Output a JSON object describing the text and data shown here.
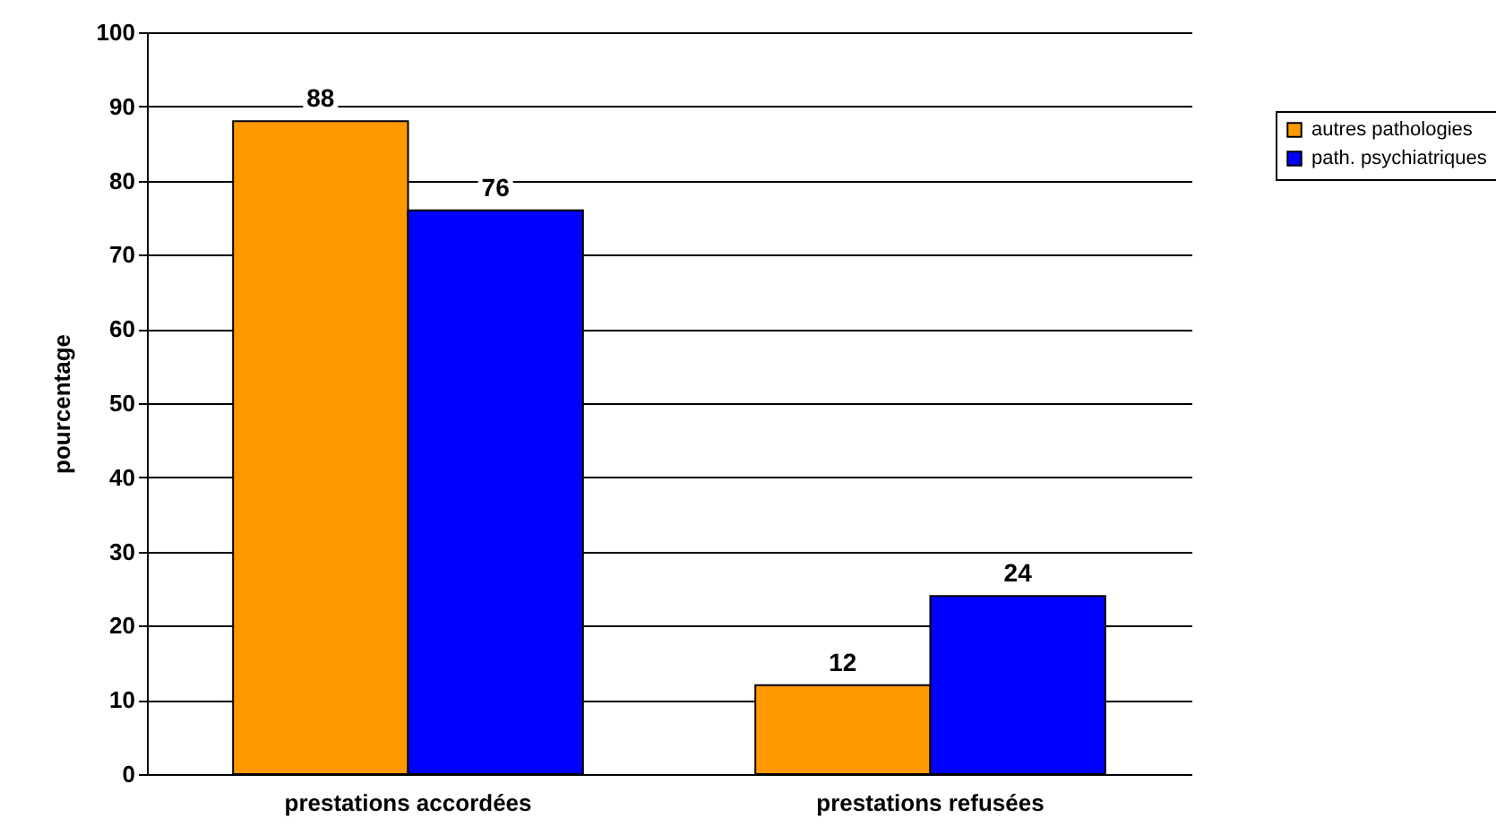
{
  "chart_data": {
    "type": "bar",
    "ylabel": "pourcentage",
    "categories": [
      "prestations accordées",
      "prestations refusées"
    ],
    "series": [
      {
        "name": "autres pathologies",
        "color": "#ff9900",
        "values": [
          88,
          12
        ]
      },
      {
        "name": "path. psychiatriques",
        "color": "#0000ff",
        "values": [
          76,
          24
        ]
      }
    ],
    "ylim": [
      0,
      100
    ],
    "yticks": [
      0,
      10,
      20,
      30,
      40,
      50,
      60,
      70,
      80,
      90,
      100
    ],
    "grid": "y",
    "legend": "right",
    "data_labels": true
  }
}
